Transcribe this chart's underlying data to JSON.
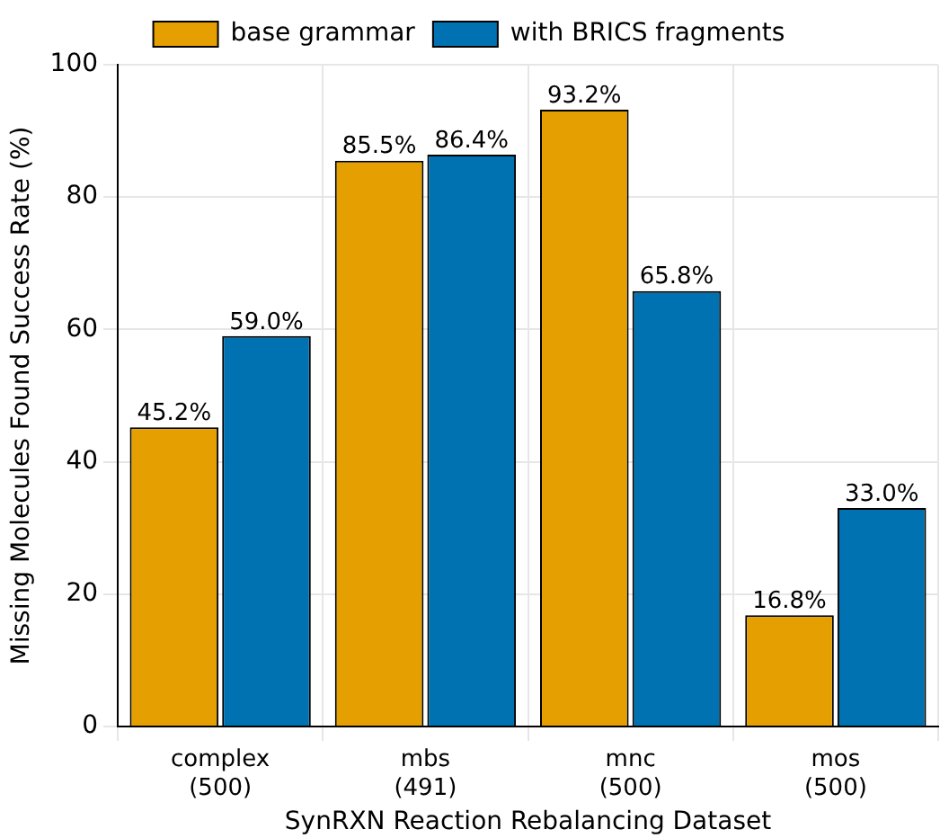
{
  "chart_data": {
    "type": "bar",
    "xlabel": "SynRXN Reaction Rebalancing Dataset",
    "ylabel": "Missing Molecules Found Success Rate (%)",
    "categories": [
      "complex\n(500)",
      "mbs\n(491)",
      "mnc\n(500)",
      "mos\n(500)"
    ],
    "series": [
      {
        "name": "base grammar",
        "color": "#e69f00",
        "values": [
          45.2,
          85.5,
          93.2,
          16.8
        ],
        "value_labels": [
          "45.2%",
          "85.5%",
          "93.2%",
          "16.8%"
        ]
      },
      {
        "name": "with BRICS fragments",
        "color": "#0072b2",
        "values": [
          59.0,
          86.4,
          65.8,
          33.0
        ],
        "value_labels": [
          "59.0%",
          "86.4%",
          "65.8%",
          "33.0%"
        ]
      }
    ],
    "ylim": [
      0,
      100
    ],
    "yticks": [
      0,
      20,
      40,
      60,
      80,
      100
    ],
    "grid": true,
    "legend": "top"
  }
}
